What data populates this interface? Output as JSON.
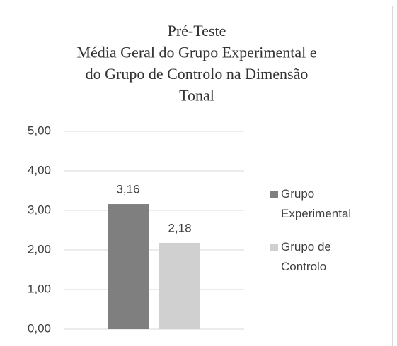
{
  "chart_data": {
    "type": "bar",
    "title": [
      "Pré-Teste",
      "Média Geral do Grupo Experimental e",
      "do Grupo de Controlo  na Dimensão",
      "Tonal"
    ],
    "categories": [
      null
    ],
    "series": [
      {
        "name": "Grupo Experimental",
        "color": "#7f7f7f",
        "values": [
          3.16
        ],
        "value_labels": [
          "3,16"
        ]
      },
      {
        "name": "Grupo de Controlo",
        "color": "#d0d0d0",
        "values": [
          2.18
        ],
        "value_labels": [
          "2,18"
        ]
      }
    ],
    "ylim": [
      0,
      5
    ],
    "yticks": [
      {
        "value": 0,
        "label": "0,00"
      },
      {
        "value": 1,
        "label": "1,00"
      },
      {
        "value": 2,
        "label": "2,00"
      },
      {
        "value": 3,
        "label": "3,00"
      },
      {
        "value": 4,
        "label": "4,00"
      },
      {
        "value": 5,
        "label": "5,00"
      }
    ],
    "grid": true,
    "legend": "right"
  }
}
